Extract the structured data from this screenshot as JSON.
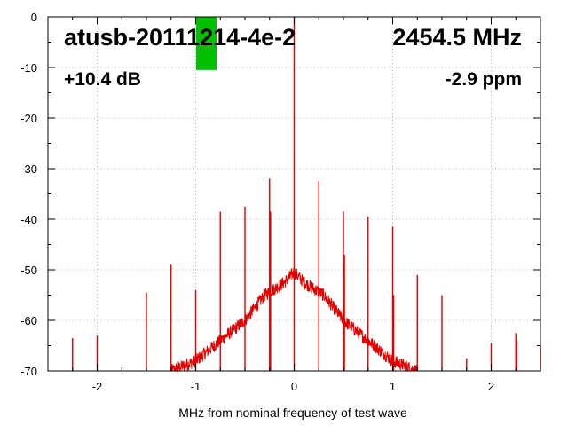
{
  "chart_data": {
    "type": "line",
    "title": "",
    "xlabel": "MHz from nominal frequency of test wave",
    "ylabel": "",
    "xlim": [
      -2.5,
      2.5
    ],
    "ylim": [
      -70,
      0
    ],
    "x_ticks": [
      -2,
      -1,
      0,
      1,
      2
    ],
    "y_ticks": [
      0,
      -10,
      -20,
      -30,
      -40,
      -50,
      -60,
      -70
    ],
    "grid": true,
    "annotations": {
      "device": "atusb-20111214-4e-2",
      "frequency": "2454.5 MHz",
      "level": "+10.4 dB",
      "offset": "-2.9 ppm"
    },
    "indicator": {
      "color": "#00c000",
      "level_db": -10.5
    },
    "series": [
      {
        "color": "#e00000",
        "noise_floor_x": [
          -1.25,
          -1.0,
          -0.75,
          -0.5,
          -0.3,
          -0.1,
          0.0,
          0.1,
          0.3,
          0.5,
          0.75,
          1.0,
          1.25
        ],
        "noise_floor_y": [
          -70,
          -68,
          -64,
          -60,
          -55,
          -52.5,
          -50.5,
          -52.5,
          -55,
          -60,
          -64,
          -68,
          -70
        ],
        "spurs_x": [
          -2.25,
          -2.0,
          -1.5,
          -1.25,
          -1.0,
          -0.75,
          -0.5,
          -0.25,
          -0.24,
          0.0,
          0.25,
          0.5,
          0.51,
          0.75,
          1.0,
          1.01,
          1.25,
          1.5,
          1.75,
          2.0,
          2.25,
          2.26,
          2.5
        ],
        "spurs_y": [
          -63.5,
          -63,
          -54.5,
          -49,
          -54,
          -38.5,
          -37.5,
          -32,
          -38.5,
          0,
          -32.5,
          -38.5,
          -47,
          -39.5,
          -41.5,
          -55,
          -51,
          -55,
          -67.5,
          -64.5,
          -62.5,
          -64,
          -65
        ]
      }
    ]
  }
}
